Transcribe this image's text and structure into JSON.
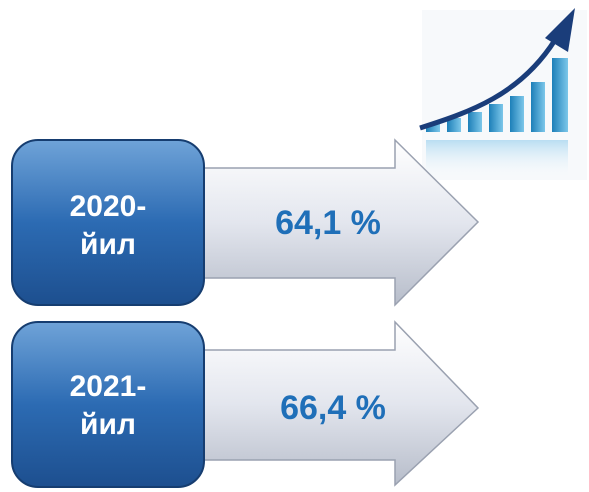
{
  "items": [
    {
      "year": "2020-",
      "unit": "йил",
      "value": "64,1 %"
    },
    {
      "year": "2021-",
      "unit": "йил",
      "value": "66,4 %"
    }
  ]
}
